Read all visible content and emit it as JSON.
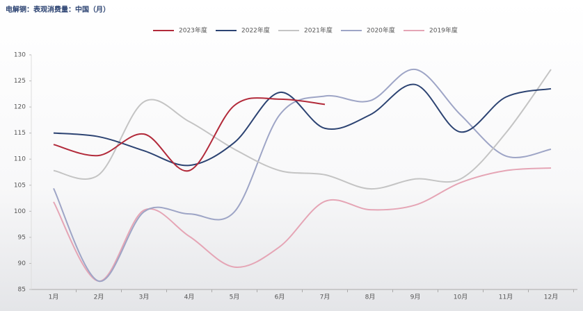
{
  "chart_data": {
    "type": "line",
    "title": "电解铜：表观消费量：中国（月）",
    "categories": [
      "1月",
      "2月",
      "3月",
      "4月",
      "5月",
      "6月",
      "7月",
      "8月",
      "9月",
      "10月",
      "11月",
      "12月"
    ],
    "series": [
      {
        "name": "2023年度",
        "color": "#b22a3a",
        "values": [
          112.8,
          110.7,
          114.8,
          107.8,
          120.3,
          121.5,
          120.5,
          null,
          null,
          null,
          null,
          null
        ]
      },
      {
        "name": "2022年度",
        "color": "#2c4372",
        "values": [
          115,
          114.3,
          111.6,
          108.8,
          113.2,
          122.8,
          115.9,
          118.5,
          124.3,
          115.2,
          121.9,
          123.5
        ]
      },
      {
        "name": "2021年度",
        "color": "#c4c4c4",
        "values": [
          107.8,
          107,
          121,
          117.2,
          111.9,
          107.8,
          107,
          104.3,
          106.2,
          106.2,
          115,
          127.2
        ]
      },
      {
        "name": "2020年度",
        "color": "#9ea5c6",
        "values": [
          104.4,
          86.6,
          99.9,
          99.5,
          99.9,
          118.5,
          122.1,
          121.2,
          127.2,
          118.5,
          110.6,
          111.9
        ]
      },
      {
        "name": "2019年度",
        "color": "#e5a5b5",
        "values": [
          101.8,
          86.6,
          100.2,
          95.2,
          89.3,
          93.2,
          101.9,
          100.3,
          101.2,
          105.5,
          107.8,
          108.3
        ]
      }
    ],
    "ylim": [
      85,
      130
    ],
    "yticks": [
      85,
      90,
      95,
      100,
      105,
      110,
      115,
      120,
      125,
      130
    ]
  }
}
